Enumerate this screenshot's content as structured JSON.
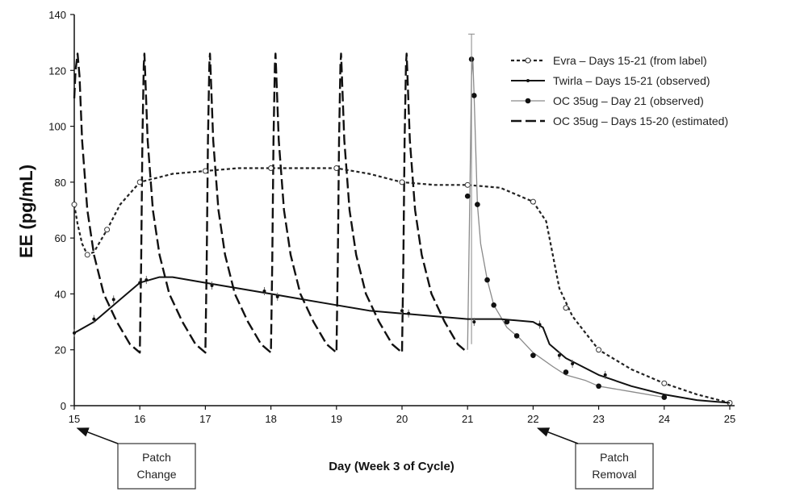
{
  "chart_data": {
    "type": "line",
    "title": "",
    "xlabel": "Day (Week 3 of Cycle)",
    "ylabel": "EE (pg/mL)",
    "xlim": [
      15,
      25
    ],
    "ylim": [
      0,
      140
    ],
    "xticks": [
      15,
      16,
      17,
      18,
      19,
      20,
      21,
      22,
      23,
      24,
      25
    ],
    "yticks": [
      0,
      20,
      40,
      60,
      80,
      100,
      120,
      140
    ],
    "grid": false,
    "legend_position": "top-right",
    "series": [
      {
        "name": "Evra – Days 15-21 (from label)",
        "style": "short-dash-open-circle",
        "color": "#222222",
        "x": [
          15.0,
          15.05,
          15.12,
          15.2,
          15.3,
          15.5,
          15.7,
          16.0,
          16.5,
          17.0,
          17.5,
          18.0,
          18.5,
          19.0,
          19.5,
          20.0,
          20.5,
          21.0,
          21.5,
          22.0,
          22.2,
          22.4,
          22.6,
          23.0,
          23.5,
          24.0,
          24.5,
          25.0
        ],
        "y": [
          72,
          65,
          58,
          54,
          55,
          63,
          72,
          80,
          83,
          84,
          85,
          85,
          85,
          85,
          83,
          80,
          79,
          79,
          78,
          73,
          66,
          42,
          32,
          20,
          13,
          8,
          4,
          1
        ],
        "markers_x": [
          15.0,
          15.2,
          15.5,
          16.0,
          17.0,
          18.0,
          19.0,
          20.0,
          21.0,
          22.0,
          22.5,
          23.0,
          24.0,
          25.0
        ],
        "markers_y": [
          72,
          54,
          63,
          80,
          84,
          85,
          85,
          80,
          79,
          73,
          35,
          20,
          8,
          1
        ]
      },
      {
        "name": "Twirla – Days 15-21 (observed)",
        "style": "solid-small-dot",
        "color": "#111111",
        "x": [
          15.0,
          15.3,
          15.7,
          16.0,
          16.3,
          16.5,
          17.0,
          17.5,
          18.0,
          18.5,
          19.0,
          19.5,
          20.0,
          20.5,
          21.0,
          21.5,
          22.0,
          22.15,
          22.25,
          22.5,
          23.0,
          23.5,
          24.0,
          24.5,
          25.0
        ],
        "y": [
          26,
          30,
          38,
          44,
          46,
          46,
          44,
          42,
          40,
          38,
          36,
          34,
          33,
          32,
          31,
          31,
          30,
          28,
          22,
          17,
          11,
          7,
          4,
          2,
          1
        ],
        "markers_x": [
          15.0,
          15.3,
          15.6,
          16.0,
          16.1,
          17.1,
          17.9,
          18.1,
          20.0,
          20.1,
          21.1,
          22.1,
          22.4,
          22.6,
          23.1
        ],
        "markers_y": [
          26,
          31,
          38,
          44,
          45,
          43,
          41,
          39,
          34,
          33,
          30,
          29,
          18,
          15,
          11
        ]
      },
      {
        "name": "OC 35ug – Day 21 (observed)",
        "style": "solid-thin-gray-filled-circle",
        "color": "#888888",
        "x": [
          21.0,
          21.03,
          21.06,
          21.08,
          21.1,
          21.15,
          21.2,
          21.3,
          21.4,
          21.5,
          21.6,
          21.8,
          22.0,
          22.3,
          22.5,
          22.8,
          23.0,
          23.5,
          24.0
        ],
        "y": [
          20,
          67,
          118,
          124,
          111,
          72,
          58,
          45,
          36,
          32,
          28,
          24,
          19,
          14,
          11,
          9,
          7,
          5,
          3
        ],
        "markers_x": [
          21.0,
          21.06,
          21.1,
          21.15,
          21.3,
          21.4,
          21.6,
          21.75,
          22.0,
          22.5,
          23.0,
          24.0
        ],
        "markers_y": [
          75,
          124,
          111,
          72,
          45,
          36,
          30,
          25,
          18,
          12,
          7,
          3
        ]
      },
      {
        "name": "OC 35ug – Days 15-20 (estimated)",
        "style": "long-dash",
        "color": "#111111",
        "x": [
          15.0,
          15.02,
          15.05,
          15.08,
          15.12,
          15.2,
          15.3,
          15.45,
          15.65,
          15.85,
          16.0,
          16.02,
          16.04,
          16.06,
          16.07,
          16.08,
          16.12,
          16.2,
          16.3,
          16.45,
          16.65,
          16.85,
          17.0,
          17.02,
          17.04,
          17.06,
          17.07,
          17.08,
          17.12,
          17.2,
          17.3,
          17.45,
          17.65,
          17.85,
          18.0,
          18.02,
          18.04,
          18.06,
          18.07,
          18.08,
          18.12,
          18.2,
          18.3,
          18.45,
          18.65,
          18.85,
          19.0,
          19.02,
          19.04,
          19.06,
          19.07,
          19.08,
          19.12,
          19.2,
          19.3,
          19.45,
          19.65,
          19.85,
          20.0,
          20.02,
          20.04,
          20.06,
          20.07,
          20.08,
          20.12,
          20.2,
          20.3,
          20.45,
          20.65,
          20.85,
          21.0
        ],
        "y": [
          110,
          120,
          126,
          118,
          95,
          70,
          54,
          40,
          30,
          22,
          19,
          50,
          95,
          122,
          126,
          120,
          95,
          70,
          54,
          40,
          30,
          22,
          19,
          50,
          95,
          122,
          126,
          120,
          95,
          70,
          54,
          40,
          30,
          22,
          19,
          50,
          95,
          122,
          126,
          120,
          95,
          70,
          54,
          40,
          30,
          22,
          19,
          50,
          95,
          122,
          126,
          120,
          95,
          70,
          54,
          40,
          30,
          22,
          19,
          50,
          95,
          122,
          126,
          120,
          95,
          70,
          54,
          40,
          30,
          22,
          19
        ]
      }
    ],
    "annotations": [
      {
        "text_lines": [
          "Patch",
          "Change"
        ],
        "arrow_to_x": 15.0
      },
      {
        "text_lines": [
          "Patch",
          "Removal"
        ],
        "arrow_to_x": 22.0
      }
    ]
  }
}
